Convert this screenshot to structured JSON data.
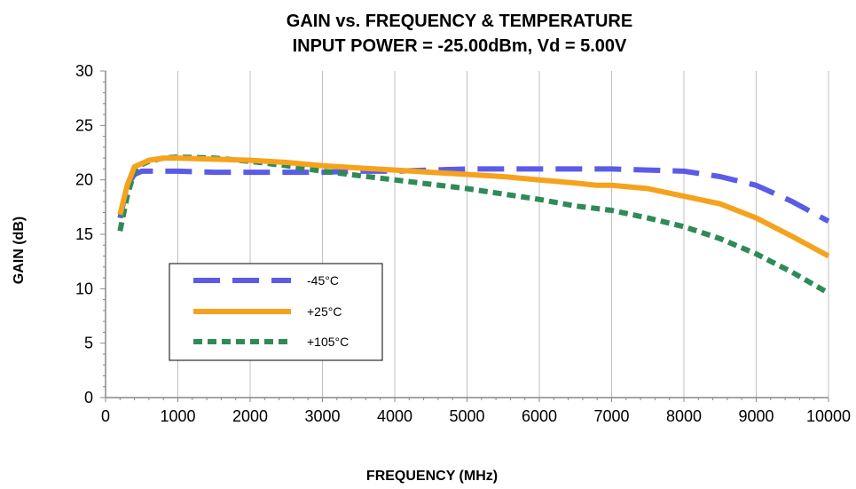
{
  "chart_data": {
    "type": "line",
    "title": "GAIN vs. FREQUENCY & TEMPERATURE",
    "subtitle": "INPUT POWER = -25.00dBm, Vd = 5.00V",
    "xlabel": "FREQUENCY (MHz)",
    "ylabel": "GAIN (dB)",
    "xlim": [
      0,
      10000
    ],
    "ylim": [
      0,
      30
    ],
    "xticks": [
      "0",
      "1000",
      "2000",
      "3000",
      "4000",
      "5000",
      "6000",
      "7000",
      "8000",
      "9000",
      "10000"
    ],
    "yticks": [
      "0",
      "5",
      "10",
      "15",
      "20",
      "25",
      "30"
    ],
    "grid": "vertical",
    "legend_position": "lower-left",
    "series": [
      {
        "name": "-45°C",
        "color": "#5b5bea",
        "style": "long-dash",
        "x": [
          200,
          300,
          400,
          500,
          600,
          800,
          1000,
          1500,
          2000,
          2500,
          3000,
          3500,
          4000,
          4500,
          5000,
          5500,
          6000,
          6500,
          7000,
          7500,
          8000,
          8500,
          9000,
          9500,
          10000
        ],
        "y": [
          16.5,
          19.5,
          20.5,
          20.8,
          20.8,
          20.8,
          20.8,
          20.7,
          20.7,
          20.7,
          20.7,
          20.8,
          20.8,
          20.9,
          21.0,
          21.0,
          21.0,
          21.0,
          21.0,
          20.9,
          20.8,
          20.3,
          19.5,
          18.0,
          16.2
        ]
      },
      {
        "name": "+25°C",
        "color": "#f5a21c",
        "style": "solid",
        "x": [
          200,
          300,
          400,
          500,
          600,
          800,
          1000,
          1500,
          2000,
          2500,
          3000,
          3500,
          4000,
          4500,
          5000,
          5500,
          6000,
          6500,
          6800,
          7000,
          7500,
          8000,
          8500,
          9000,
          9500,
          10000
        ],
        "y": [
          16.8,
          19.5,
          21.2,
          21.5,
          21.8,
          22.0,
          22.0,
          21.9,
          21.8,
          21.6,
          21.3,
          21.1,
          20.9,
          20.7,
          20.5,
          20.3,
          20.0,
          19.7,
          19.5,
          19.5,
          19.2,
          18.5,
          17.8,
          16.5,
          14.8,
          13.0
        ]
      },
      {
        "name": "+105°C",
        "color": "#2e8b57",
        "style": "short-dash",
        "x": [
          200,
          300,
          400,
          500,
          600,
          800,
          1000,
          1500,
          2000,
          2500,
          3000,
          3500,
          4000,
          4500,
          5000,
          5500,
          6000,
          6500,
          7000,
          7500,
          8000,
          8500,
          9000,
          9500,
          10000
        ],
        "y": [
          15.3,
          18.5,
          20.8,
          21.4,
          21.7,
          22.0,
          22.1,
          22.0,
          21.7,
          21.3,
          20.8,
          20.4,
          20.0,
          19.6,
          19.2,
          18.7,
          18.2,
          17.6,
          17.2,
          16.5,
          15.7,
          14.6,
          13.2,
          11.5,
          9.6
        ]
      }
    ]
  }
}
